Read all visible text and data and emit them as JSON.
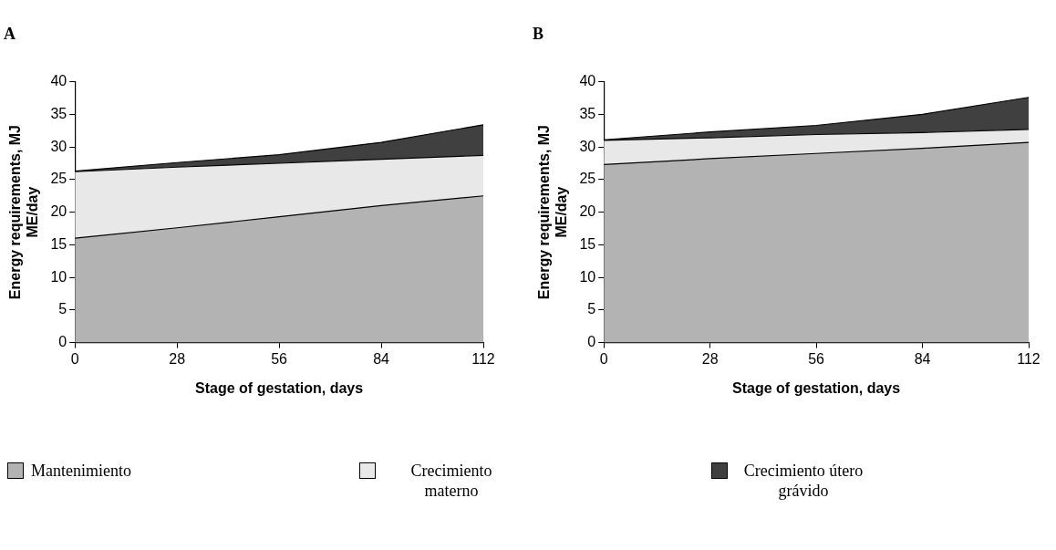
{
  "chart_data": [
    {
      "type": "area",
      "title": "A",
      "xlabel": "Stage of gestation, days",
      "ylabel": "Energy requirements, MJ ME/day",
      "stacked": true,
      "x": [
        0,
        28,
        56,
        84,
        112
      ],
      "xlim": [
        0,
        112
      ],
      "xticks": [
        0,
        28,
        56,
        84,
        112
      ],
      "ylim": [
        0,
        40
      ],
      "yticks": [
        0,
        5,
        10,
        15,
        20,
        25,
        30,
        35,
        40
      ],
      "grid": false,
      "legend": "bottom",
      "series": [
        {
          "name": "Mantenimiento",
          "color": "#b3b3b3",
          "values": [
            16,
            17.6,
            19.3,
            21,
            22.5
          ]
        },
        {
          "name": "Crecimiento materno",
          "color": "#e8e8e8",
          "values": [
            10.2,
            9.3,
            8.2,
            7.1,
            6.2
          ]
        },
        {
          "name": "Crecimiento útero grávido",
          "color": "#404040",
          "values": [
            0.1,
            0.7,
            1.3,
            2.6,
            4.7
          ]
        }
      ]
    },
    {
      "type": "area",
      "title": "B",
      "xlabel": "Stage of gestation, days",
      "ylabel": "Energy requirements, MJ ME/day",
      "stacked": true,
      "x": [
        0,
        28,
        56,
        84,
        112
      ],
      "xlim": [
        0,
        112
      ],
      "xticks": [
        0,
        28,
        56,
        84,
        112
      ],
      "ylim": [
        0,
        40
      ],
      "yticks": [
        0,
        5,
        10,
        15,
        20,
        25,
        30,
        35,
        40
      ],
      "grid": false,
      "series": [
        {
          "color": "#b3b3b3",
          "values": [
            27.3,
            28.2,
            29.0,
            29.8,
            30.7
          ]
        },
        {
          "color": "#e8e8e8",
          "values": [
            3.7,
            3.2,
            2.9,
            2.4,
            2.0
          ]
        },
        {
          "color": "#404040",
          "values": [
            0.1,
            0.9,
            1.4,
            2.8,
            4.9
          ]
        }
      ]
    }
  ]
}
